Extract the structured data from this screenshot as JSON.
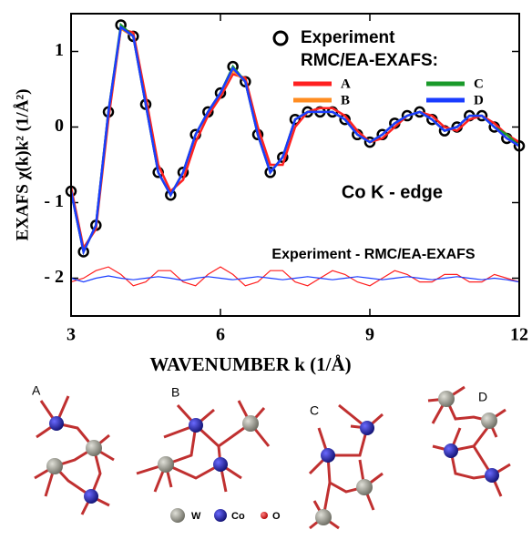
{
  "chart_data": {
    "type": "line",
    "x_label": "WAVENUMBER k (1/Å)",
    "y_label": "EXAFS χ(k)k² (1/Å²)",
    "legend_title": "RMC/EA-EXAFS:",
    "annotations": [
      "Co K - edge",
      "Experiment - RMC/EA-EXAFS"
    ],
    "xlim": [
      3,
      12
    ],
    "xticks": [
      3,
      6,
      9,
      12
    ],
    "ylim": [
      -2.5,
      1.5
    ],
    "yticks": [
      {
        "value": -2,
        "label": "- 2"
      },
      {
        "value": -1,
        "label": "- 1"
      },
      0,
      1
    ],
    "x": [
      3,
      3.25,
      3.5,
      3.75,
      4,
      4.25,
      4.5,
      4.75,
      5,
      5.25,
      5.5,
      5.75,
      6,
      6.25,
      6.5,
      6.75,
      7,
      7.25,
      7.5,
      7.75,
      8,
      8.25,
      8.5,
      8.75,
      9,
      9.25,
      9.5,
      9.75,
      10,
      10.25,
      10.5,
      10.75,
      11,
      11.25,
      11.5,
      11.75,
      12
    ],
    "series": [
      {
        "name": "Experiment",
        "color": "#000000",
        "marker": "circle",
        "values": [
          -0.85,
          -1.65,
          -1.3,
          0.2,
          1.35,
          1.2,
          0.3,
          -0.6,
          -0.9,
          -0.6,
          -0.1,
          0.2,
          0.45,
          0.8,
          0.6,
          -0.1,
          -0.6,
          -0.4,
          0.1,
          0.2,
          0.2,
          0.2,
          0.1,
          -0.1,
          -0.2,
          -0.1,
          0.05,
          0.15,
          0.2,
          0.1,
          -0.05,
          0.0,
          0.15,
          0.15,
          0.0,
          -0.15,
          -0.25
        ]
      },
      {
        "name": "A",
        "color": "#ff2020",
        "values": [
          -0.8,
          -1.6,
          -1.35,
          0.1,
          1.3,
          1.25,
          0.4,
          -0.5,
          -0.85,
          -0.7,
          -0.2,
          0.15,
          0.4,
          0.7,
          0.65,
          0.0,
          -0.5,
          -0.5,
          0.0,
          0.2,
          0.25,
          0.25,
          0.15,
          -0.05,
          -0.2,
          -0.15,
          0.0,
          0.15,
          0.2,
          0.15,
          0.0,
          -0.05,
          0.1,
          0.15,
          0.05,
          -0.1,
          -0.2
        ]
      },
      {
        "name": "B",
        "color": "#ff8c20",
        "values": [
          -0.85,
          -1.65,
          -1.3,
          0.2,
          1.3,
          1.2,
          0.3,
          -0.6,
          -0.9,
          -0.6,
          -0.1,
          0.2,
          0.45,
          0.75,
          0.6,
          -0.1,
          -0.6,
          -0.4,
          0.1,
          0.2,
          0.2,
          0.2,
          0.1,
          -0.1,
          -0.2,
          -0.1,
          0.05,
          0.15,
          0.2,
          0.1,
          -0.05,
          0.0,
          0.15,
          0.15,
          0.0,
          -0.15,
          -0.25
        ]
      },
      {
        "name": "C",
        "color": "#1a9a2a",
        "values": [
          -0.85,
          -1.65,
          -1.3,
          0.2,
          1.35,
          1.2,
          0.3,
          -0.6,
          -0.9,
          -0.6,
          -0.1,
          0.2,
          0.45,
          0.8,
          0.6,
          -0.1,
          -0.6,
          -0.4,
          0.1,
          0.2,
          0.2,
          0.2,
          0.1,
          -0.1,
          -0.2,
          -0.1,
          0.05,
          0.15,
          0.2,
          0.1,
          -0.05,
          0.0,
          0.15,
          0.15,
          0.0,
          -0.1,
          -0.25
        ]
      },
      {
        "name": "D",
        "color": "#1a3cff",
        "values": [
          -0.85,
          -1.65,
          -1.3,
          0.2,
          1.32,
          1.2,
          0.3,
          -0.6,
          -0.9,
          -0.6,
          -0.1,
          0.2,
          0.45,
          0.78,
          0.6,
          -0.1,
          -0.6,
          -0.4,
          0.1,
          0.2,
          0.2,
          0.2,
          0.1,
          -0.1,
          -0.2,
          -0.1,
          0.05,
          0.15,
          0.2,
          0.1,
          -0.05,
          0.0,
          0.15,
          0.15,
          0.0,
          -0.15,
          -0.25
        ]
      }
    ],
    "residuals": [
      {
        "color": "#ff2020",
        "values": [
          -2.05,
          -2.0,
          -1.9,
          -1.85,
          -1.95,
          -2.1,
          -2.05,
          -1.9,
          -1.9,
          -2.05,
          -2.1,
          -1.95,
          -1.85,
          -1.95,
          -2.1,
          -2.05,
          -1.9,
          -1.9,
          -2.05,
          -2.1,
          -2.0,
          -1.9,
          -1.95,
          -2.05,
          -2.1,
          -2.0,
          -1.9,
          -1.95,
          -2.05,
          -2.05,
          -1.95,
          -1.95,
          -2.05,
          -2.05,
          -1.95,
          -2.0,
          -2.05
        ]
      },
      {
        "color": "#1a3cff",
        "values": [
          -2.0,
          -2.05,
          -2.0,
          -1.97,
          -2.0,
          -2.02,
          -2.0,
          -1.98,
          -2.0,
          -2.03,
          -2.0,
          -1.98,
          -2.0,
          -2.02,
          -2.0,
          -1.98,
          -2.0,
          -2.02,
          -2.0,
          -1.98,
          -2.0,
          -2.02,
          -2.0,
          -1.98,
          -2.0,
          -2.02,
          -2.0,
          -1.98,
          -2.0,
          -2.02,
          -2.0,
          -1.98,
          -2.0,
          -2.02,
          -2.0,
          -2.02,
          -2.05
        ]
      }
    ]
  },
  "structures": {
    "labels": [
      "A",
      "B",
      "C",
      "D"
    ],
    "legend": [
      "W",
      "Co",
      "O"
    ]
  }
}
